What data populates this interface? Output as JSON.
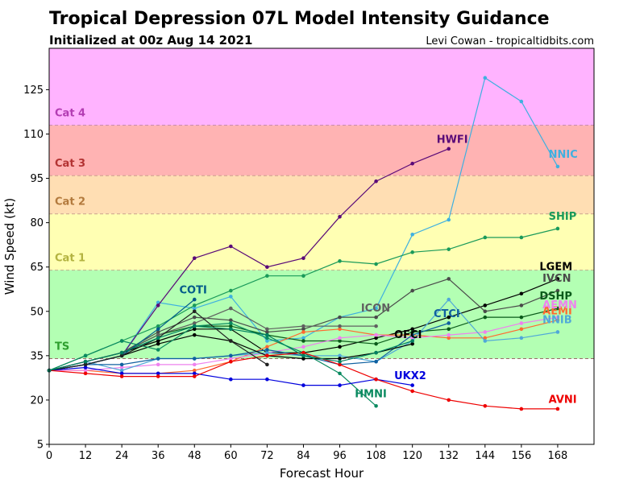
{
  "header": {
    "title": "Tropical Depression 07L Model Intensity Guidance",
    "subtitle": "Initialized at 00z Aug 14 2021",
    "credit": "Levi Cowan - tropicaltidbits.com"
  },
  "chart_data": {
    "type": "line",
    "xlabel": "Forecast Hour",
    "ylabel": "Wind Speed (kt)",
    "xlim": [
      0,
      180
    ],
    "ylim": [
      5,
      139
    ],
    "xticks": [
      0,
      12,
      24,
      36,
      48,
      60,
      72,
      84,
      96,
      108,
      120,
      132,
      144,
      156,
      168
    ],
    "yticks": [
      5,
      20,
      35,
      50,
      65,
      80,
      95,
      110,
      125
    ],
    "grid": false,
    "bands": [
      {
        "label": "TS",
        "from": 34,
        "to": 64,
        "color": "#b3ffb3",
        "label_color": "#2e9e2e",
        "label_y": 37
      },
      {
        "label": "Cat 1",
        "from": 64,
        "to": 83,
        "color": "#ffffb3",
        "label_color": "#b3b340",
        "label_y": 67
      },
      {
        "label": "Cat 2",
        "from": 83,
        "to": 96,
        "color": "#ffdeb3",
        "label_color": "#b37a3d",
        "label_y": 86
      },
      {
        "label": "Cat 3",
        "from": 96,
        "to": 113,
        "color": "#ffb3b3",
        "label_color": "#b33333",
        "label_y": 99
      },
      {
        "label": "Cat 4",
        "from": 113,
        "to": 139,
        "color": "#ffb3ff",
        "label_color": "#b33db3",
        "label_y": 116
      }
    ],
    "series": [
      {
        "name": "NNIC",
        "color": "#3fb0e0",
        "label_at": [
          165,
          102
        ],
        "x": [
          0,
          12,
          24,
          36,
          48,
          60,
          72,
          84,
          96,
          108,
          120,
          132,
          144,
          156,
          168
        ],
        "y": [
          30,
          32,
          35,
          53,
          51,
          55,
          40,
          41,
          48,
          51,
          76,
          81,
          129,
          121,
          99
        ]
      },
      {
        "name": "HWFI",
        "color": "#5a0a78",
        "label_at": [
          128,
          107
        ],
        "x": [
          0,
          12,
          24,
          36,
          48,
          60,
          72,
          84,
          96,
          108,
          120,
          132
        ],
        "y": [
          30,
          32,
          35,
          52,
          68,
          72,
          65,
          68,
          82,
          94,
          100,
          105
        ]
      },
      {
        "name": "SHIP",
        "color": "#1a9a5a",
        "label_at": [
          165,
          81
        ],
        "x": [
          0,
          12,
          24,
          36,
          48,
          60,
          72,
          84,
          96,
          108,
          120,
          132,
          144,
          156,
          168
        ],
        "y": [
          30,
          35,
          40,
          45,
          52,
          57,
          62,
          62,
          67,
          66,
          70,
          71,
          75,
          75,
          78
        ]
      },
      {
        "name": "LGEM",
        "color": "#000000",
        "label_at": [
          162,
          64
        ],
        "x": [
          0,
          12,
          24,
          36,
          48,
          60,
          72,
          84,
          96,
          108,
          120,
          132,
          144,
          156,
          168
        ],
        "y": [
          30,
          33,
          36,
          40,
          44,
          44,
          36,
          36,
          38,
          41,
          44,
          48,
          52,
          56,
          61
        ]
      },
      {
        "name": "IVCN",
        "color": "#4a4a4a",
        "label_at": [
          163,
          60
        ],
        "x": [
          0,
          12,
          24,
          36,
          48,
          60,
          72,
          84,
          96,
          108,
          120,
          132,
          144,
          156,
          168
        ],
        "y": [
          30,
          33,
          36,
          43,
          48,
          47,
          43,
          44,
          48,
          48,
          57,
          61,
          50,
          52,
          57
        ]
      },
      {
        "name": "DSHP",
        "color": "#0a5a1a",
        "label_at": [
          162,
          54
        ],
        "x": [
          0,
          12,
          24,
          36,
          48,
          60,
          72,
          84,
          96,
          108,
          120,
          132,
          144,
          156,
          168
        ],
        "y": [
          30,
          33,
          36,
          42,
          45,
          45,
          42,
          40,
          40,
          39,
          43,
          44,
          48,
          48,
          51
        ]
      },
      {
        "name": "AEMI",
        "color": "#ff6a30",
        "label_at": [
          163,
          49
        ],
        "x": [
          0,
          12,
          24,
          36,
          48,
          60,
          72,
          84,
          96,
          108,
          120,
          132,
          144,
          156,
          168
        ],
        "y": [
          30,
          30,
          29,
          29,
          30,
          33,
          38,
          43,
          44,
          42,
          42,
          41,
          41,
          44,
          47
        ]
      },
      {
        "name": "AEMN",
        "color": "#ee82ee",
        "label_at": [
          163,
          51
        ],
        "x": [
          0,
          12,
          24,
          36,
          48,
          60,
          72,
          84,
          96,
          108,
          120,
          132,
          144,
          156,
          168
        ],
        "y": [
          30,
          30,
          31,
          32,
          32,
          34,
          36,
          38,
          41,
          42,
          41,
          42,
          43,
          46,
          48
        ]
      },
      {
        "name": "NNIB",
        "color": "#50a8d8",
        "label_at": [
          163,
          46
        ],
        "x": [
          0,
          12,
          24,
          36,
          48,
          60,
          72,
          84,
          96,
          108,
          120,
          132,
          144,
          156,
          168
        ],
        "y": [
          30,
          33,
          30,
          34,
          34,
          35,
          36,
          35,
          35,
          33,
          40,
          54,
          40,
          41,
          43
        ]
      },
      {
        "name": "CTCI",
        "color": "#1060a0",
        "label_at": [
          127,
          48
        ],
        "x": [
          0,
          12,
          24,
          36,
          48,
          60,
          72,
          84,
          96,
          108,
          120,
          132
        ],
        "y": [
          30,
          32,
          32,
          34,
          34,
          35,
          37,
          35,
          32,
          33,
          42,
          46
        ]
      },
      {
        "name": "ICON",
        "color": "#606060",
        "label_at": [
          103,
          50
        ],
        "x": [
          0,
          12,
          24,
          36,
          48,
          60,
          72,
          84,
          96,
          108
        ],
        "y": [
          30,
          33,
          36,
          42,
          46,
          51,
          44,
          45,
          45,
          45
        ]
      },
      {
        "name": "OFCI",
        "color": "#000000",
        "label_at": [
          114,
          41
        ],
        "x": [
          0,
          12,
          24,
          36,
          48,
          60,
          72,
          84,
          96,
          108,
          120
        ],
        "y": [
          30,
          32,
          35,
          39,
          42,
          40,
          35,
          34,
          34,
          36,
          39
        ]
      },
      {
        "name": "COTI",
        "color": "#005a8a",
        "label_at": [
          43,
          56
        ],
        "x": [
          0,
          12,
          24,
          36,
          48
        ],
        "y": [
          30,
          32,
          35,
          44,
          54
        ]
      },
      {
        "name": "HMNI",
        "color": "#0a8a60",
        "label_at": [
          101,
          21
        ],
        "x": [
          0,
          12,
          24,
          36,
          48,
          60,
          72,
          84,
          96,
          108
        ],
        "y": [
          30,
          35,
          40,
          37,
          45,
          46,
          41,
          36,
          29,
          18
        ]
      },
      {
        "name": "UKX2",
        "color": "#0000dd",
        "label_at": [
          114,
          27
        ],
        "x": [
          0,
          12,
          24,
          36,
          48,
          60,
          72,
          84,
          96,
          108,
          120
        ],
        "y": [
          30,
          31,
          29,
          29,
          29,
          27,
          27,
          25,
          25,
          27,
          25
        ]
      },
      {
        "name": "AVNI",
        "color": "#ee0000",
        "label_at": [
          165,
          19
        ],
        "x": [
          0,
          12,
          24,
          36,
          48,
          60,
          72,
          84,
          96,
          108,
          120,
          132,
          144,
          156,
          168
        ],
        "y": [
          30,
          29,
          28,
          28,
          28,
          33,
          35,
          36,
          32,
          27,
          23,
          20,
          18,
          17,
          17
        ]
      },
      {
        "name": "",
        "color": "#222222",
        "label_at": null,
        "x": [
          0,
          12,
          24,
          36,
          48,
          60,
          72
        ],
        "y": [
          30,
          32,
          35,
          41,
          50,
          40,
          32
        ]
      },
      {
        "name": "",
        "color": "#008060",
        "label_at": null,
        "x": [
          0,
          12,
          24,
          36,
          48,
          60,
          72,
          84,
          96,
          108,
          120
        ],
        "y": [
          30,
          33,
          36,
          41,
          45,
          44,
          42,
          35,
          33,
          36,
          40
        ]
      }
    ]
  }
}
